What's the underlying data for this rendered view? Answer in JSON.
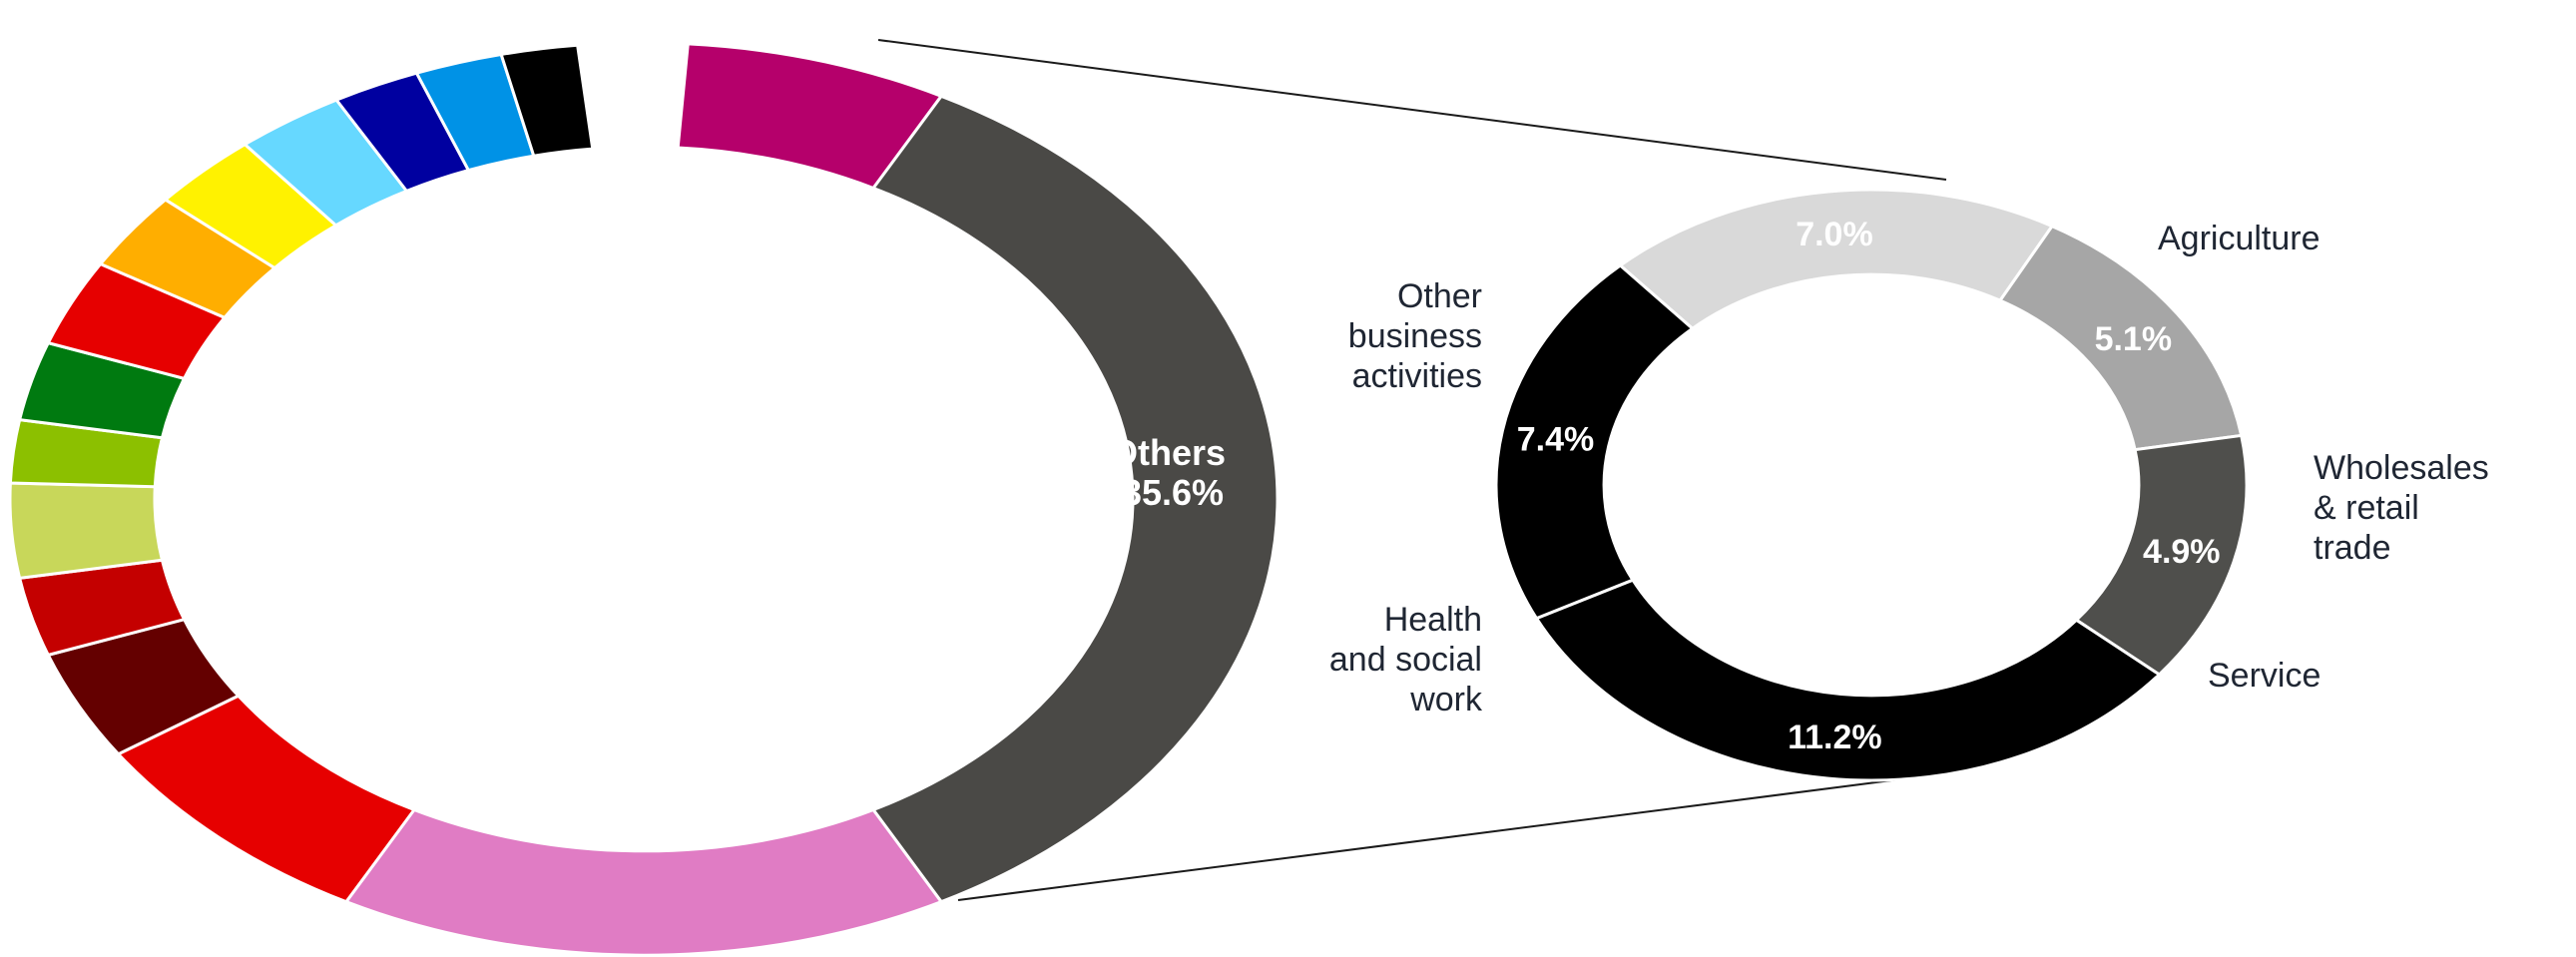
{
  "chart_data": [
    {
      "type": "pie",
      "variant": "donut",
      "label_format": "{name}\n{value}%",
      "slices": [
        {
          "name": "",
          "color": "#b5006b"
        },
        {
          "name": "Others",
          "value": 35.6,
          "color": "#4a4946"
        },
        {
          "name": "",
          "color": "#e07cc4"
        },
        {
          "name": "",
          "color": "#e60000"
        },
        {
          "name": "",
          "color": "#640000"
        },
        {
          "name": "",
          "color": "#c40000"
        },
        {
          "name": "",
          "color": "#c8d75a"
        },
        {
          "name": "",
          "color": "#8cc000"
        },
        {
          "name": "",
          "color": "#007a10"
        },
        {
          "name": "",
          "color": "#e60000"
        },
        {
          "name": "",
          "color": "#ffae00"
        },
        {
          "name": "",
          "color": "#fff200"
        },
        {
          "name": "",
          "color": "#66d8ff"
        },
        {
          "name": "",
          "color": "#0000a0"
        },
        {
          "name": "",
          "color": "#0092e6"
        },
        {
          "name": "",
          "color": "#000000"
        }
      ]
    },
    {
      "type": "pie",
      "variant": "donut",
      "label_format": "{value}%",
      "slices": [
        {
          "name": "Agriculture",
          "value": 7.0,
          "color": "#d9d9d9"
        },
        {
          "name": "Wholesales & retail trade",
          "value": 5.1,
          "color": "#a6a6a6"
        },
        {
          "name": "Service",
          "value": 4.9,
          "color": "#4f4f4c"
        },
        {
          "name": "Health and social work",
          "value": 11.2,
          "color": "#000000"
        },
        {
          "name": "Other business activities",
          "value": 7.4,
          "color": "#000000"
        }
      ]
    }
  ]
}
